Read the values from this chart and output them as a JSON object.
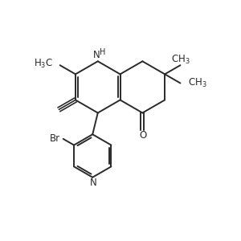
{
  "bg_color": "#ffffff",
  "line_color": "#2a2a2a",
  "lw": 1.4,
  "fs": 8.5,
  "xlim": [
    0,
    10
  ],
  "ylim": [
    0,
    10
  ]
}
